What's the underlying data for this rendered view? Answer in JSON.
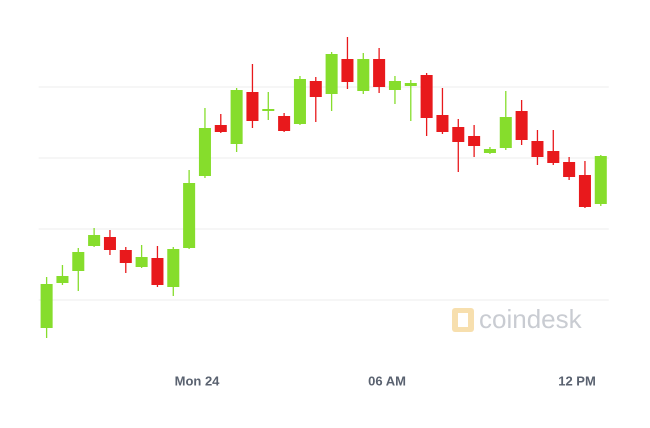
{
  "chart_data": {
    "type": "candlestick",
    "watermark": "coindesk",
    "x": [
      -4.75,
      -4.25,
      -3.75,
      -3.25,
      -2.75,
      -2.25,
      -1.75,
      -1.25,
      -0.75,
      -0.25,
      0.25,
      0.75,
      1.25,
      1.75,
      2.25,
      2.75,
      3.25,
      3.75,
      4.25,
      4.75,
      5.25,
      5.75,
      6.25,
      6.75,
      7.25,
      7.75,
      8.25,
      8.75,
      9.25,
      9.75,
      10.25,
      10.75,
      11.25,
      11.75,
      12.25,
      12.75
    ],
    "open": [
      43,
      88,
      100,
      125,
      134,
      121,
      104,
      113,
      84,
      123,
      195,
      246,
      227,
      279,
      260,
      255,
      247,
      290,
      277,
      312,
      280,
      312,
      281,
      285,
      296,
      256,
      244,
      235,
      218,
      223,
      260,
      230,
      220,
      209,
      196,
      167
    ],
    "high": [
      94,
      106,
      123,
      143,
      141,
      124,
      126,
      125,
      124,
      201,
      263,
      257,
      283,
      307,
      279,
      258,
      295,
      294,
      319,
      334,
      318,
      323,
      295,
      291,
      298,
      283,
      252,
      246,
      224,
      280,
      271,
      241,
      241,
      214,
      210,
      216
    ],
    "low": [
      33,
      86,
      80,
      124,
      116,
      98,
      103,
      84,
      75,
      122,
      193,
      238,
      219,
      243,
      251,
      239,
      246,
      249,
      260,
      282,
      277,
      278,
      267,
      250,
      235,
      237,
      199,
      214,
      217,
      221,
      226,
      206,
      206,
      191,
      163,
      165
    ],
    "close": [
      87,
      95,
      119,
      136,
      121,
      108,
      114,
      86,
      122,
      188,
      243,
      239,
      281,
      250,
      262,
      240,
      292,
      274,
      317,
      289,
      312,
      284,
      290,
      288,
      253,
      239,
      229,
      225,
      222,
      254,
      231,
      214,
      208,
      194,
      164,
      215
    ],
    "up_color": "#86dd2c",
    "down_color": "#e8191c",
    "xlim": [
      -5,
      13
    ],
    "xticks": [
      {
        "value": 0,
        "label": "Mon 24"
      },
      {
        "value": 6,
        "label": "06 AM"
      },
      {
        "value": 12,
        "label": "12 PM"
      }
    ],
    "ylim": [
      0,
      341
    ],
    "yticks": [
      71,
      142,
      213,
      284
    ],
    "grid": true
  }
}
